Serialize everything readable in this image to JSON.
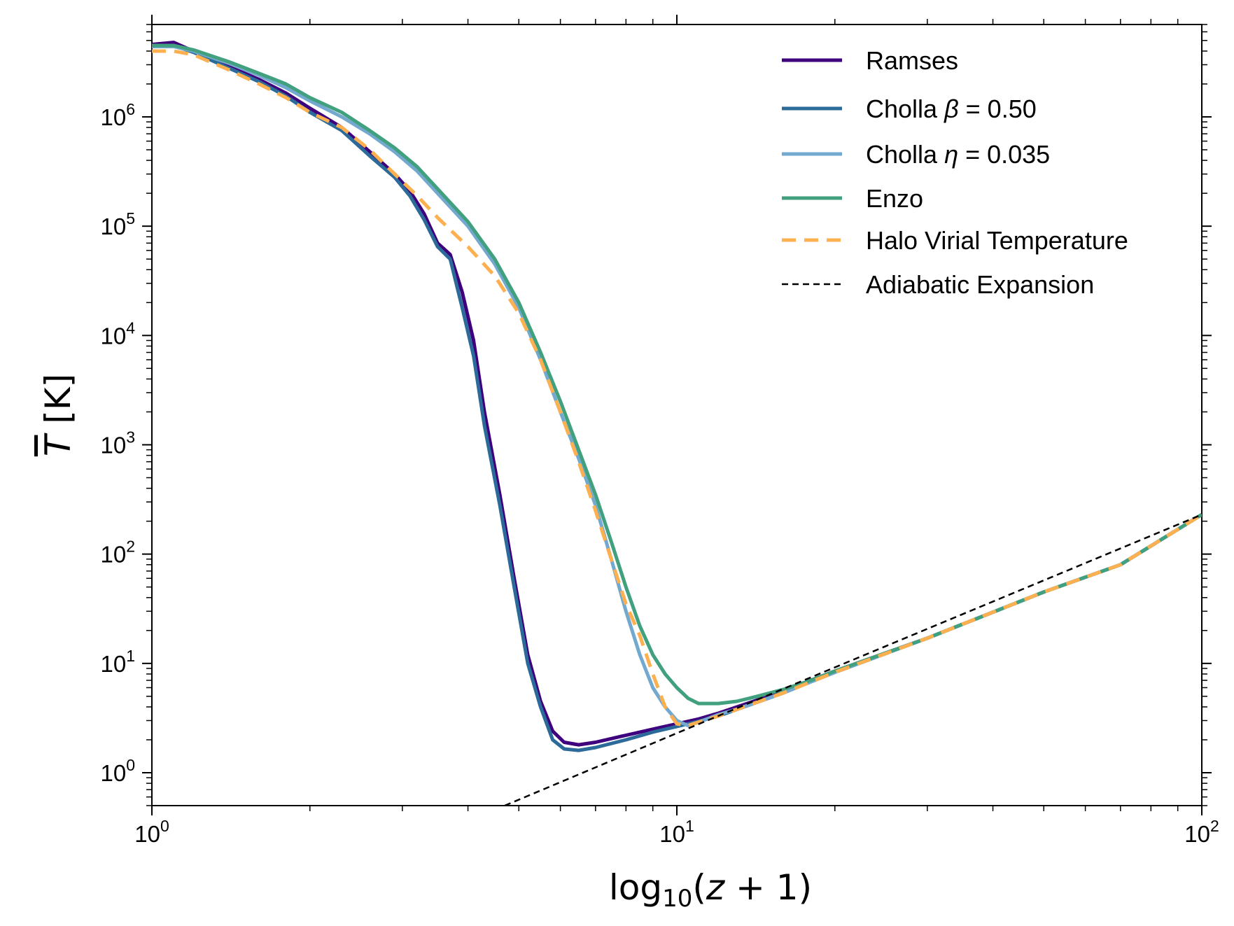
{
  "chart_data": {
    "type": "line",
    "xscale": "log",
    "yscale": "log",
    "xlim": [
      1,
      100
    ],
    "ylim": [
      0.5,
      7000000
    ],
    "xlabel": "log₁₀(z + 1)",
    "ylabel": "T̄  [K]",
    "x_ticks": [
      {
        "value": 1,
        "base": "10",
        "exp": "0"
      },
      {
        "value": 10,
        "base": "10",
        "exp": "1"
      },
      {
        "value": 100,
        "base": "10",
        "exp": "2"
      }
    ],
    "y_ticks": [
      {
        "value": 1,
        "base": "10",
        "exp": "0"
      },
      {
        "value": 10,
        "base": "10",
        "exp": "1"
      },
      {
        "value": 100,
        "base": "10",
        "exp": "2"
      },
      {
        "value": 1000,
        "base": "10",
        "exp": "3"
      },
      {
        "value": 10000,
        "base": "10",
        "exp": "4"
      },
      {
        "value": 100000,
        "base": "10",
        "exp": "5"
      },
      {
        "value": 1000000,
        "base": "10",
        "exp": "6"
      }
    ],
    "grid": false,
    "legend_position": "top-right",
    "series": [
      {
        "name": "Ramses",
        "color": "#3f007d",
        "style": "solid",
        "points": [
          [
            1.0,
            4600000.0
          ],
          [
            1.1,
            4800000.0
          ],
          [
            1.2,
            4000000.0
          ],
          [
            1.4,
            2900000.0
          ],
          [
            1.6,
            2200000.0
          ],
          [
            1.8,
            1650000.0
          ],
          [
            2.0,
            1200000.0
          ],
          [
            2.3,
            800000.0
          ],
          [
            2.6,
            480000.0
          ],
          [
            2.9,
            300000.0
          ],
          [
            3.1,
            210000.0
          ],
          [
            3.3,
            130000.0
          ],
          [
            3.5,
            70000.0
          ],
          [
            3.7,
            55000.0
          ],
          [
            3.9,
            25000.0
          ],
          [
            4.1,
            9000
          ],
          [
            4.3,
            2000
          ],
          [
            4.6,
            350
          ],
          [
            4.9,
            60
          ],
          [
            5.2,
            12
          ],
          [
            5.5,
            4.5
          ],
          [
            5.8,
            2.4
          ],
          [
            6.1,
            1.9
          ],
          [
            6.5,
            1.8
          ],
          [
            7.0,
            1.9
          ],
          [
            8.0,
            2.2
          ],
          [
            9.0,
            2.5
          ],
          [
            10.0,
            2.8
          ],
          [
            11.0,
            3.1
          ],
          [
            12.0,
            3.5
          ],
          [
            14.0,
            4.5
          ],
          [
            16.0,
            5.6
          ],
          [
            18.0,
            7.0
          ],
          [
            20.0,
            8.5
          ],
          [
            30.0,
            17
          ],
          [
            50.0,
            45
          ],
          [
            70.0,
            80
          ],
          [
            100.0,
            230
          ]
        ]
      },
      {
        "name": "Cholla β = 0.50",
        "color": "#2b6a99",
        "style": "solid",
        "points": [
          [
            1.0,
            4500000.0
          ],
          [
            1.1,
            4500000.0
          ],
          [
            1.2,
            3900000.0
          ],
          [
            1.4,
            2800000.0
          ],
          [
            1.6,
            2100000.0
          ],
          [
            1.8,
            1550000.0
          ],
          [
            2.0,
            1100000.0
          ],
          [
            2.3,
            750000.0
          ],
          [
            2.6,
            440000.0
          ],
          [
            2.9,
            280000.0
          ],
          [
            3.1,
            190000.0
          ],
          [
            3.3,
            115000.0
          ],
          [
            3.5,
            65000.0
          ],
          [
            3.7,
            50000.0
          ],
          [
            3.9,
            18000.0
          ],
          [
            4.1,
            6500
          ],
          [
            4.3,
            1500
          ],
          [
            4.6,
            280
          ],
          [
            4.9,
            50
          ],
          [
            5.2,
            10
          ],
          [
            5.5,
            4.0
          ],
          [
            5.8,
            2.0
          ],
          [
            6.1,
            1.65
          ],
          [
            6.5,
            1.6
          ],
          [
            7.0,
            1.7
          ],
          [
            8.0,
            2.0
          ],
          [
            9.0,
            2.35
          ],
          [
            10.0,
            2.65
          ],
          [
            11.0,
            2.95
          ],
          [
            12.0,
            3.3
          ],
          [
            14.0,
            4.3
          ],
          [
            16.0,
            5.4
          ],
          [
            18.0,
            6.8
          ],
          [
            20.0,
            8.3
          ],
          [
            30.0,
            17
          ],
          [
            50.0,
            45
          ],
          [
            70.0,
            80
          ],
          [
            100.0,
            230
          ]
        ]
      },
      {
        "name": "Cholla η = 0.035",
        "color": "#74a9cf",
        "style": "solid",
        "points": [
          [
            1.0,
            4400000.0
          ],
          [
            1.1,
            4400000.0
          ],
          [
            1.2,
            4000000.0
          ],
          [
            1.4,
            3100000.0
          ],
          [
            1.6,
            2400000.0
          ],
          [
            1.8,
            1850000.0
          ],
          [
            2.0,
            1400000.0
          ],
          [
            2.3,
            1000000.0
          ],
          [
            2.6,
            700000.0
          ],
          [
            2.9,
            480000.0
          ],
          [
            3.2,
            320000.0
          ],
          [
            3.5,
            200000.0
          ],
          [
            4.0,
            100000.0
          ],
          [
            4.5,
            45000.0
          ],
          [
            5.0,
            18000.0
          ],
          [
            5.5,
            6000
          ],
          [
            6.0,
            2000
          ],
          [
            6.5,
            750
          ],
          [
            7.0,
            280
          ],
          [
            7.5,
            90
          ],
          [
            8.0,
            30
          ],
          [
            8.5,
            12
          ],
          [
            9.0,
            6.0
          ],
          [
            9.5,
            4.0
          ],
          [
            10.0,
            3.0
          ],
          [
            10.5,
            2.7
          ],
          [
            11.0,
            2.9
          ],
          [
            12.0,
            3.4
          ],
          [
            13.0,
            3.8
          ],
          [
            14.0,
            4.3
          ],
          [
            16.0,
            5.4
          ],
          [
            18.0,
            6.8
          ],
          [
            20.0,
            8.3
          ],
          [
            30.0,
            17
          ],
          [
            50.0,
            45
          ],
          [
            70.0,
            80
          ],
          [
            100.0,
            230
          ]
        ]
      },
      {
        "name": "Enzo",
        "color": "#41a07e",
        "style": "solid",
        "points": [
          [
            1.0,
            4500000.0
          ],
          [
            1.1,
            4500000.0
          ],
          [
            1.2,
            4100000.0
          ],
          [
            1.4,
            3200000.0
          ],
          [
            1.6,
            2500000.0
          ],
          [
            1.8,
            2000000.0
          ],
          [
            2.0,
            1500000.0
          ],
          [
            2.3,
            1100000.0
          ],
          [
            2.6,
            750000.0
          ],
          [
            2.9,
            520000.0
          ],
          [
            3.2,
            350000.0
          ],
          [
            3.5,
            220000.0
          ],
          [
            4.0,
            110000.0
          ],
          [
            4.5,
            50000.0
          ],
          [
            5.0,
            20000.0
          ],
          [
            5.5,
            7000
          ],
          [
            6.0,
            2500
          ],
          [
            6.5,
            900
          ],
          [
            7.0,
            350
          ],
          [
            7.5,
            130
          ],
          [
            8.0,
            50
          ],
          [
            8.5,
            22
          ],
          [
            9.0,
            12
          ],
          [
            9.5,
            8.0
          ],
          [
            10.0,
            6.0
          ],
          [
            10.5,
            4.8
          ],
          [
            11.0,
            4.3
          ],
          [
            12.0,
            4.3
          ],
          [
            13.0,
            4.5
          ],
          [
            14.0,
            4.9
          ],
          [
            16.0,
            5.8
          ],
          [
            18.0,
            7.0
          ],
          [
            20.0,
            8.5
          ],
          [
            30.0,
            17
          ],
          [
            50.0,
            45
          ],
          [
            70.0,
            80
          ],
          [
            100.0,
            230
          ]
        ]
      },
      {
        "name": "Halo Virial Temperature",
        "color": "#fdb050",
        "style": "dashed",
        "points": [
          [
            1.0,
            4000000.0
          ],
          [
            1.1,
            4000000.0
          ],
          [
            1.2,
            3700000.0
          ],
          [
            1.4,
            2700000.0
          ],
          [
            1.6,
            2000000.0
          ],
          [
            1.8,
            1500000.0
          ],
          [
            2.0,
            1100000.0
          ],
          [
            2.3,
            800000.0
          ],
          [
            2.6,
            500000.0
          ],
          [
            2.9,
            300000.0
          ],
          [
            3.2,
            190000.0
          ],
          [
            3.5,
            120000.0
          ],
          [
            4.0,
            65000.0
          ],
          [
            4.5,
            35000.0
          ],
          [
            5.0,
            16000.0
          ],
          [
            5.5,
            6000
          ],
          [
            6.0,
            2000
          ],
          [
            6.5,
            700
          ],
          [
            7.0,
            250
          ],
          [
            7.5,
            90
          ],
          [
            8.0,
            35
          ],
          [
            8.5,
            18
          ],
          [
            9.0,
            8
          ],
          [
            9.5,
            4.0
          ],
          [
            10.0,
            2.8
          ],
          [
            10.5,
            2.7
          ],
          [
            11.0,
            2.9
          ],
          [
            12.0,
            3.3
          ],
          [
            14.0,
            4.3
          ],
          [
            16.0,
            5.4
          ],
          [
            20.0,
            8.3
          ],
          [
            30.0,
            17
          ],
          [
            50.0,
            45
          ],
          [
            70.0,
            80
          ],
          [
            100.0,
            230
          ]
        ]
      },
      {
        "name": "Adiabatic Expansion",
        "color": "#000000",
        "style": "dashed-thin",
        "points": [
          [
            4.7,
            0.5
          ],
          [
            10,
            2.3
          ],
          [
            30,
            20.7
          ],
          [
            100,
            230
          ]
        ]
      }
    ]
  }
}
